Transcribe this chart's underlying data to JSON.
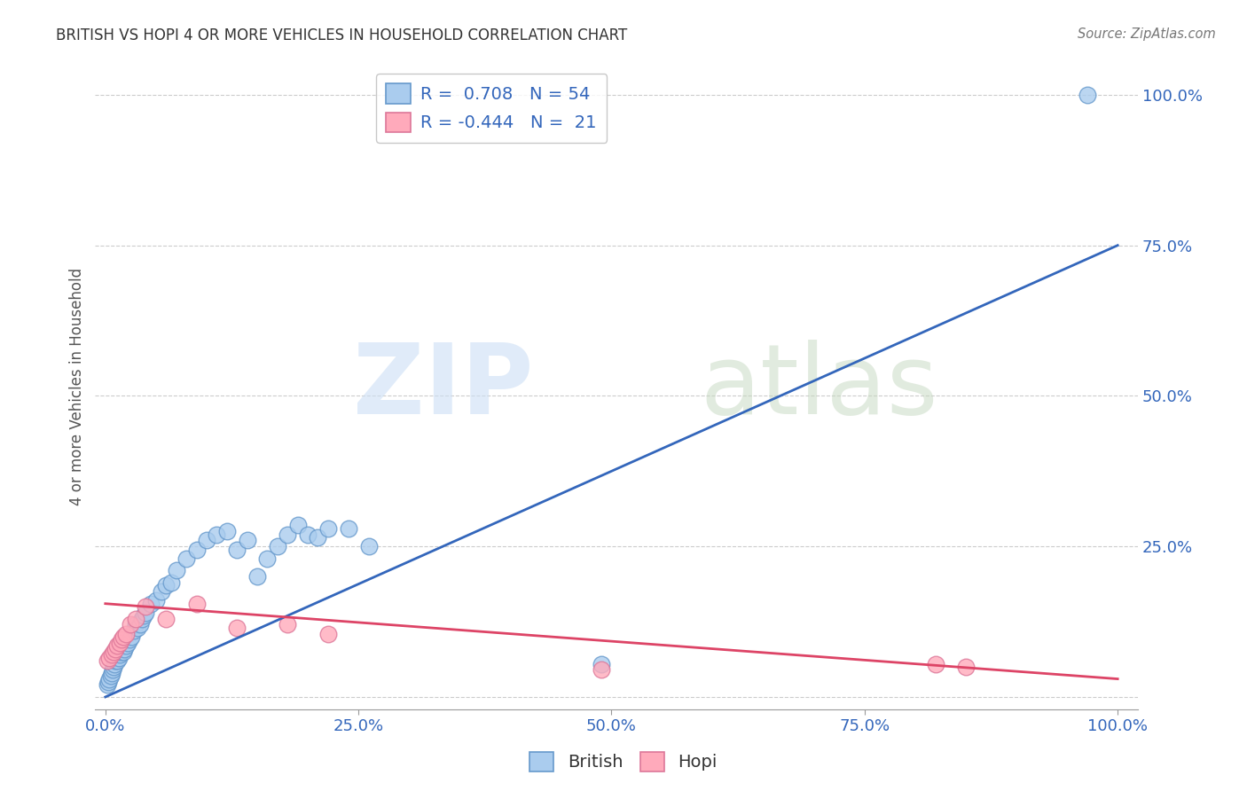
{
  "title": "BRITISH VS HOPI 4 OR MORE VEHICLES IN HOUSEHOLD CORRELATION CHART",
  "source": "Source: ZipAtlas.com",
  "ylabel": "4 or more Vehicles in Household",
  "british_R": 0.708,
  "british_N": 54,
  "hopi_R": -0.444,
  "hopi_N": 21,
  "british_color": "#aaccee",
  "british_edge_color": "#6699cc",
  "hopi_color": "#ffaabb",
  "hopi_edge_color": "#dd7799",
  "blue_line_color": "#3366bb",
  "pink_line_color": "#dd4466",
  "grid_color": "#cccccc",
  "title_color": "#333333",
  "axis_tick_color": "#3366bb",
  "xlim": [
    -0.01,
    1.02
  ],
  "ylim": [
    -0.02,
    1.05
  ],
  "xticks": [
    0.0,
    0.25,
    0.5,
    0.75,
    1.0
  ],
  "yticks": [
    0.0,
    0.25,
    0.5,
    0.75,
    1.0
  ],
  "xticklabels": [
    "0.0%",
    "25.0%",
    "50.0%",
    "75.0%",
    "100.0%"
  ],
  "yticklabels": [
    "0.0%",
    "25.0%",
    "50.0%",
    "75.0%",
    "100.0%"
  ],
  "british_x": [
    0.002,
    0.003,
    0.004,
    0.005,
    0.006,
    0.007,
    0.008,
    0.009,
    0.01,
    0.011,
    0.012,
    0.013,
    0.014,
    0.015,
    0.016,
    0.017,
    0.018,
    0.019,
    0.02,
    0.022,
    0.024,
    0.026,
    0.028,
    0.03,
    0.032,
    0.034,
    0.036,
    0.038,
    0.04,
    0.045,
    0.05,
    0.055,
    0.06,
    0.065,
    0.07,
    0.08,
    0.09,
    0.1,
    0.11,
    0.12,
    0.13,
    0.14,
    0.15,
    0.16,
    0.17,
    0.18,
    0.19,
    0.2,
    0.21,
    0.22,
    0.24,
    0.26,
    0.97,
    0.49
  ],
  "british_y": [
    0.02,
    0.025,
    0.03,
    0.035,
    0.04,
    0.045,
    0.05,
    0.055,
    0.06,
    0.065,
    0.06,
    0.065,
    0.07,
    0.075,
    0.08,
    0.085,
    0.075,
    0.08,
    0.085,
    0.09,
    0.095,
    0.1,
    0.11,
    0.12,
    0.115,
    0.12,
    0.13,
    0.135,
    0.14,
    0.155,
    0.16,
    0.175,
    0.185,
    0.19,
    0.21,
    0.23,
    0.245,
    0.26,
    0.27,
    0.275,
    0.245,
    0.26,
    0.2,
    0.23,
    0.25,
    0.27,
    0.285,
    0.27,
    0.265,
    0.28,
    0.28,
    0.25,
    1.0,
    0.055
  ],
  "hopi_x": [
    0.002,
    0.004,
    0.006,
    0.008,
    0.01,
    0.012,
    0.014,
    0.016,
    0.018,
    0.02,
    0.025,
    0.03,
    0.04,
    0.06,
    0.09,
    0.13,
    0.18,
    0.22,
    0.49,
    0.82,
    0.85
  ],
  "hopi_y": [
    0.06,
    0.065,
    0.07,
    0.075,
    0.08,
    0.085,
    0.09,
    0.095,
    0.1,
    0.105,
    0.12,
    0.13,
    0.15,
    0.13,
    0.155,
    0.115,
    0.12,
    0.105,
    0.045,
    0.055,
    0.05
  ],
  "blue_trend_x0": 0.0,
  "blue_trend_y0": 0.0,
  "blue_trend_x1": 1.0,
  "blue_trend_y1": 0.75,
  "pink_trend_x0": 0.0,
  "pink_trend_y0": 0.155,
  "pink_trend_x1": 1.0,
  "pink_trend_y1": 0.03
}
